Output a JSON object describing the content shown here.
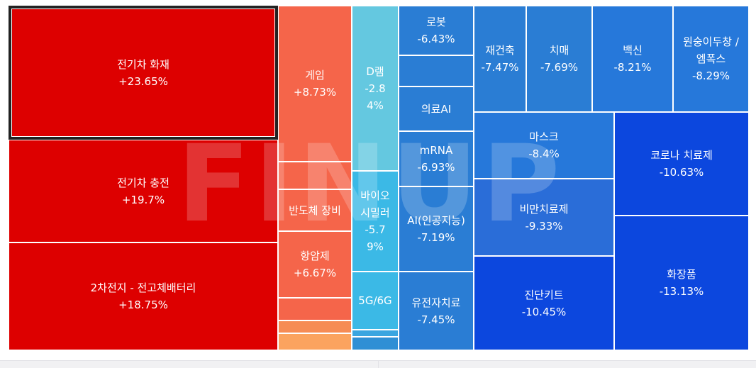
{
  "chart_data": {
    "type": "treemap",
    "watermark": "FINUP",
    "tiles": [
      {
        "id": "ev-fire",
        "label": "전기차 화재",
        "value": "+23.65%",
        "color": "#dd0000",
        "selected": true
      },
      {
        "id": "ev-charge",
        "label": "전기차 충전",
        "value": "+19.7%",
        "color": "#dd0000"
      },
      {
        "id": "solid-battery",
        "label": "2차전지 - 전고체배터리",
        "value": "+18.75%",
        "color": "#dd0000"
      },
      {
        "id": "game",
        "label": "게임",
        "value": "+8.73%",
        "color": "#f5654a"
      },
      {
        "id": "small-a",
        "label": "",
        "value": "",
        "color": "#f5654a"
      },
      {
        "id": "semi-equip",
        "label": "반도체 장비",
        "value": "",
        "color": "#f5654a"
      },
      {
        "id": "anticancer",
        "label": "항암제",
        "value": "+6.67%",
        "color": "#f5654a"
      },
      {
        "id": "small-b",
        "label": "",
        "value": "",
        "color": "#f5654a"
      },
      {
        "id": "small-c",
        "label": "",
        "value": "",
        "color": "#f68c55"
      },
      {
        "id": "small-d",
        "label": "",
        "value": "",
        "color": "#fba35f"
      },
      {
        "id": "dram",
        "label": "D램",
        "value": "-2.8\n4%",
        "color": "#64c8e0"
      },
      {
        "id": "bio-similar",
        "label": "바이오\n시밀러",
        "value": "-5.7\n9%",
        "color": "#3bb9e6"
      },
      {
        "id": "5g6g",
        "label": "5G/6G",
        "value": "",
        "color": "#3bb9e6"
      },
      {
        "id": "small-e",
        "label": "",
        "value": "",
        "color": "#3aa5e0"
      },
      {
        "id": "small-f",
        "label": "",
        "value": "",
        "color": "#2f8fd5"
      },
      {
        "id": "robot",
        "label": "로봇",
        "value": "-6.43%",
        "color": "#2a7dd4"
      },
      {
        "id": "small-g",
        "label": "",
        "value": "",
        "color": "#2a7dd4"
      },
      {
        "id": "medical-ai",
        "label": "의료AI",
        "value": "",
        "color": "#2a7dd4"
      },
      {
        "id": "mrna",
        "label": "mRNA",
        "value": "-6.93%",
        "color": "#2a7dd4"
      },
      {
        "id": "ai",
        "label": "AI(인공지능)",
        "value": "-7.19%",
        "color": "#2a7dd4"
      },
      {
        "id": "gene-therapy",
        "label": "유전자치료",
        "value": "-7.45%",
        "color": "#2a7dd4"
      },
      {
        "id": "reconstruction",
        "label": "재건축",
        "value": "-7.47%",
        "color": "#2a7dd4"
      },
      {
        "id": "dementia",
        "label": "치매",
        "value": "-7.69%",
        "color": "#2a7dd4"
      },
      {
        "id": "vaccine",
        "label": "백신",
        "value": "-8.21%",
        "color": "#2678da"
      },
      {
        "id": "monkeypox",
        "label": "원숭이두창 /\n엠폭스",
        "value": "-8.29%",
        "color": "#2678da"
      },
      {
        "id": "mask",
        "label": "마스크",
        "value": "-8.4%",
        "color": "#2678da"
      },
      {
        "id": "obesity",
        "label": "비만치료제",
        "value": "-9.33%",
        "color": "#2a6dd8"
      },
      {
        "id": "diagnostic-kit",
        "label": "진단키트",
        "value": "-10.45%",
        "color": "#0c47de"
      },
      {
        "id": "covid-treatment",
        "label": "코로나 치료제",
        "value": "-10.63%",
        "color": "#0c47de"
      },
      {
        "id": "cosmetics",
        "label": "화장품",
        "value": "-13.13%",
        "color": "#0c47de"
      }
    ]
  }
}
